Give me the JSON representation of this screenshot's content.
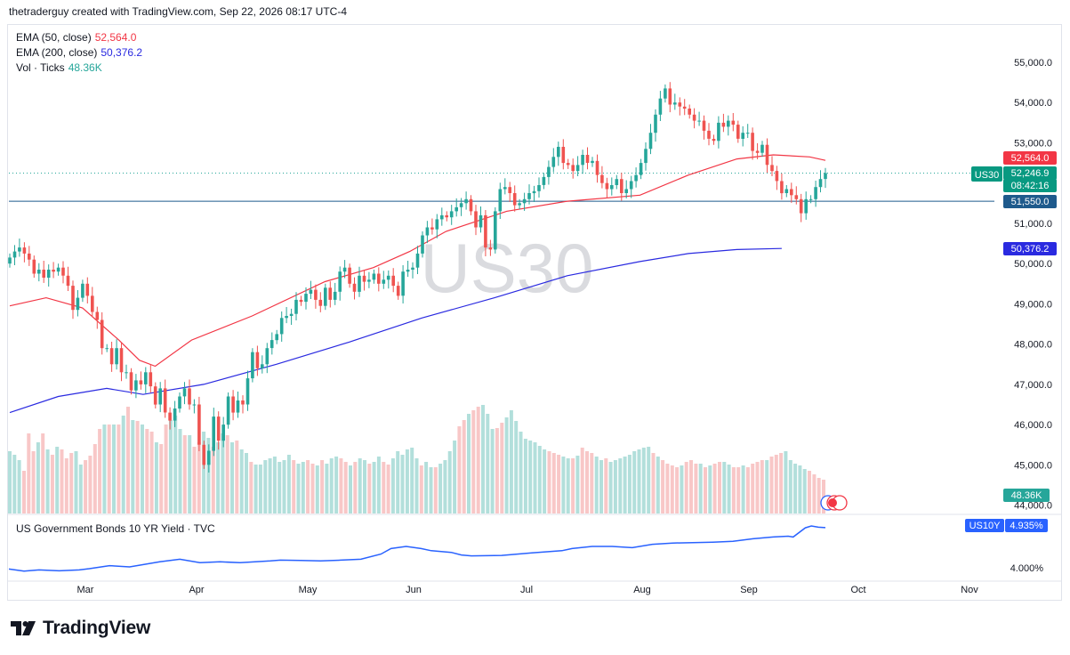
{
  "header": {
    "text": "thetraderguy created with TradingView.com, Sep 22, 2026 08:17 UTC-4"
  },
  "brand": {
    "name": "TradingView",
    "icon": "tradingview-logo-icon"
  },
  "colors": {
    "up": "#26a69a",
    "down": "#ef5350",
    "ema50": "#f23645",
    "ema200": "#2a2ae0",
    "vol_up": "#b2dfdb",
    "vol_down": "#f8c7c7",
    "yield": "#2962ff"
  },
  "legend": {
    "ema50": {
      "label": "EMA (50, close)",
      "value": "52,564.0"
    },
    "ema200": {
      "label": "EMA (200, close)",
      "value": "50,376.2"
    },
    "vol": {
      "label": "Vol · Ticks",
      "value": "48.36K"
    },
    "yield": {
      "label": "US Government Bonds 10 YR Yield · TVC"
    }
  },
  "watermark": "US30",
  "price_labels": {
    "symbol": "US30",
    "price": "52,246.9",
    "countdown": "08:42:16",
    "ema50": "52,564.0",
    "ema200": "50,376.2",
    "hline": "51,550.0",
    "volume": "48.36K",
    "yield_symbol": "US10Y",
    "yield_value": "4.935%"
  },
  "chart_data": [
    {
      "type": "candlestick",
      "title": "US30",
      "y_ticks": [
        "55,000.0",
        "54,000.0",
        "53,000.0",
        "51,000.0",
        "50,000.0",
        "49,000.0",
        "48,000.0",
        "47,000.0",
        "46,000.0",
        "45,000.0",
        "44,000.0"
      ],
      "ylim": [
        43900,
        55550
      ],
      "x_ticks": [
        "Mar",
        "Apr",
        "May",
        "Jun",
        "Jul",
        "Aug",
        "Sep",
        "Oct",
        "Nov"
      ],
      "close_series": [
        50150,
        50300,
        50400,
        50250,
        50100,
        49750,
        49850,
        49650,
        49850,
        49800,
        49900,
        49700,
        49450,
        48850,
        49150,
        49500,
        49200,
        48800,
        48600,
        47900,
        47900,
        47500,
        47900,
        47300,
        47300,
        46850,
        47100,
        47000,
        47300,
        46950,
        46500,
        46900,
        46300,
        46100,
        46400,
        46700,
        46900,
        46500,
        46500,
        45500,
        45000,
        45350,
        46200,
        45600,
        46000,
        46700,
        46300,
        46600,
        46500,
        47150,
        47800,
        47400,
        47500,
        47900,
        48100,
        48250,
        48650,
        48700,
        48750,
        49100,
        49050,
        49250,
        49350,
        49100,
        48950,
        49400,
        49100,
        49300,
        49800,
        49900,
        49500,
        49300,
        49700,
        49550,
        49600,
        49750,
        49500,
        49600,
        49700,
        49450,
        49200,
        49800,
        49850,
        49900,
        50250,
        50700,
        50900,
        50850,
        51100,
        51200,
        51150,
        51300,
        51400,
        51500,
        51600,
        51300,
        50900,
        51200,
        50400,
        50350,
        51300,
        51850,
        51900,
        51750,
        51450,
        51500,
        51600,
        51750,
        51800,
        51950,
        52150,
        52400,
        52650,
        52900,
        52500,
        52450,
        52300,
        52450,
        52700,
        52500,
        52550,
        52200,
        52000,
        51850,
        51950,
        52100,
        51750,
        51850,
        52050,
        52200,
        52500,
        52850,
        53250,
        53700,
        54100,
        54350,
        53950,
        54000,
        53900,
        53850,
        53700,
        53550,
        53550,
        53300,
        53100,
        53050,
        53500,
        53400,
        53550,
        53450,
        53100,
        53250,
        53250,
        52800,
        52750,
        52950,
        52450,
        52300,
        52050,
        51750,
        51850,
        51700,
        51600,
        51250,
        51600,
        51600,
        51900,
        52100,
        52246.9
      ],
      "ema50": {
        "name": "EMA (50, close)",
        "value": 52564.0,
        "points": [
          [
            0,
            48950
          ],
          [
            30,
            49150
          ],
          [
            60,
            48900
          ],
          [
            90,
            48100
          ],
          [
            107,
            47600
          ],
          [
            120,
            47450
          ],
          [
            150,
            48100
          ],
          [
            200,
            48700
          ],
          [
            260,
            49550
          ],
          [
            300,
            49900
          ],
          [
            330,
            50300
          ],
          [
            360,
            50800
          ],
          [
            410,
            51300
          ],
          [
            460,
            51550
          ],
          [
            520,
            51700
          ],
          [
            560,
            52200
          ],
          [
            600,
            52600
          ],
          [
            630,
            52700
          ],
          [
            660,
            52650
          ],
          [
            673,
            52564
          ]
        ]
      },
      "ema200": {
        "name": "EMA (200, close)",
        "value": 50376.2,
        "points": [
          [
            0,
            46300
          ],
          [
            40,
            46700
          ],
          [
            80,
            46900
          ],
          [
            110,
            46750
          ],
          [
            160,
            47000
          ],
          [
            220,
            47500
          ],
          [
            280,
            48050
          ],
          [
            340,
            48650
          ],
          [
            400,
            49150
          ],
          [
            460,
            49700
          ],
          [
            520,
            50050
          ],
          [
            560,
            50250
          ],
          [
            600,
            50350
          ],
          [
            637,
            50376.2
          ]
        ]
      },
      "hline": 51550.0,
      "last_price": 52246.9
    },
    {
      "type": "bar",
      "title": "Vol · Ticks",
      "last_value": "48.36K",
      "values": [
        70,
        66,
        60,
        48,
        90,
        70,
        80,
        90,
        72,
        66,
        75,
        72,
        62,
        68,
        70,
        55,
        60,
        65,
        78,
        95,
        100,
        100,
        100,
        100,
        110,
        120,
        105,
        104,
        100,
        95,
        92,
        80,
        78,
        100,
        105,
        110,
        95,
        88,
        88,
        75,
        80,
        92,
        85,
        75,
        80,
        90,
        88,
        80,
        82,
        72,
        68,
        58,
        55,
        55,
        60,
        62,
        64,
        58,
        60,
        66,
        60,
        56,
        58,
        60,
        56,
        54,
        60,
        56,
        62,
        64,
        62,
        58,
        54,
        58,
        62,
        60,
        56,
        58,
        64,
        58,
        55,
        62,
        70,
        66,
        72,
        74,
        62,
        54,
        58,
        52,
        52,
        56,
        60,
        70,
        82,
        98,
        105,
        112,
        116,
        120,
        122,
        112,
        95,
        96,
        102,
        108,
        116,
        104,
        92,
        84,
        82,
        80,
        76,
        72,
        70,
        68,
        66,
        64,
        62,
        62,
        65,
        74,
        70,
        68,
        64,
        60,
        62,
        58,
        60,
        62,
        64,
        66,
        70,
        72,
        74,
        75,
        68,
        64,
        60,
        56,
        54,
        52,
        54,
        58,
        60,
        56,
        56,
        52,
        54,
        56,
        58,
        58,
        55,
        52,
        52,
        54,
        52,
        56,
        58,
        60,
        60,
        64,
        66,
        68,
        70,
        60,
        56,
        54,
        50,
        48,
        44,
        40,
        38
      ]
    },
    {
      "type": "line",
      "title": "US Government Bonds 10 YR Yield · TVC",
      "y_ticks": [
        "4.000%"
      ],
      "last_value": 4.935,
      "points": [
        [
          0,
          3.97
        ],
        [
          15,
          3.92
        ],
        [
          30,
          3.95
        ],
        [
          50,
          3.93
        ],
        [
          70,
          3.95
        ],
        [
          80,
          3.98
        ],
        [
          100,
          4.05
        ],
        [
          120,
          4.02
        ],
        [
          150,
          4.14
        ],
        [
          170,
          4.2
        ],
        [
          190,
          4.12
        ],
        [
          210,
          4.14
        ],
        [
          230,
          4.12
        ],
        [
          260,
          4.16
        ],
        [
          270,
          4.18
        ],
        [
          290,
          4.17
        ],
        [
          310,
          4.16
        ],
        [
          330,
          4.18
        ],
        [
          350,
          4.2
        ],
        [
          370,
          4.32
        ],
        [
          380,
          4.45
        ],
        [
          395,
          4.5
        ],
        [
          410,
          4.45
        ],
        [
          420,
          4.4
        ],
        [
          440,
          4.36
        ],
        [
          450,
          4.3
        ],
        [
          460,
          4.28
        ],
        [
          490,
          4.29
        ],
        [
          520,
          4.35
        ],
        [
          550,
          4.4
        ],
        [
          560,
          4.45
        ],
        [
          580,
          4.5
        ],
        [
          600,
          4.5
        ],
        [
          620,
          4.47
        ],
        [
          640,
          4.55
        ],
        [
          660,
          4.58
        ],
        [
          680,
          4.59
        ],
        [
          700,
          4.6
        ],
        [
          720,
          4.62
        ],
        [
          740,
          4.68
        ],
        [
          760,
          4.72
        ],
        [
          775,
          4.74
        ],
        [
          780,
          4.72
        ],
        [
          792,
          4.935
        ],
        [
          798,
          4.98
        ],
        [
          805,
          4.95
        ],
        [
          812,
          4.94
        ]
      ]
    }
  ]
}
